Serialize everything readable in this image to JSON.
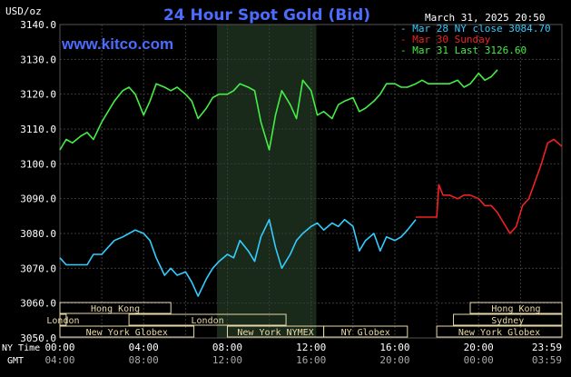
{
  "colors": {
    "background": "#000000",
    "grid": "#3a3a3a",
    "axis_text": "#ffffff",
    "title": "#4a6cff",
    "brand": "#4a6cff",
    "series_mar28": "#33ccff",
    "series_mar30": "#ee2222",
    "series_mar31": "#44ee44",
    "session_box": "#e8d8a8",
    "session_text": "#000000",
    "shade": "#1a2a1a"
  },
  "chart_data": {
    "type": "line",
    "title": "24 Hour Spot Gold (Bid)",
    "brand": "www.kitco.com",
    "timestamp": "March 31, 2025 20:50",
    "ylabel": "USD/oz",
    "ylim": [
      3050,
      3140
    ],
    "yticks": [
      "3140.0",
      "3130.0",
      "3120.0",
      "3110.0",
      "3100.0",
      "3090.0",
      "3080.0",
      "3070.0",
      "3060.0",
      "3050.0"
    ],
    "ytick_values": [
      3140,
      3130,
      3120,
      3110,
      3100,
      3090,
      3080,
      3070,
      3060,
      3050
    ],
    "x_row1_label": "NY Time",
    "x_row2_label": "GMT",
    "xticks_ny": [
      "00:00",
      "04:00",
      "08:00",
      "12:00",
      "16:00",
      "20:00",
      "23:59"
    ],
    "xticks_gmt": [
      "04:00",
      "08:00",
      "12:00",
      "16:00",
      "20:00",
      "00:00",
      "03:59"
    ],
    "xtick_hours": [
      0,
      4,
      8,
      12,
      16,
      20,
      23.98
    ],
    "xlim": [
      0,
      23.98
    ],
    "shaded_hours": [
      7.5,
      12.25
    ],
    "grid": true,
    "legend_position": "top-right",
    "legend": [
      {
        "label": "Mar 28 NY close 3084.70",
        "series": 0
      },
      {
        "label": "Mar 30 Sunday",
        "series": 1
      },
      {
        "label": "Mar 31 Last 3126.60",
        "series": 2
      }
    ],
    "series": [
      {
        "name": "Mar 28 NY close",
        "x": [
          0,
          0.3,
          0.6,
          1,
          1.3,
          1.6,
          2,
          2.3,
          2.6,
          3,
          3.3,
          3.6,
          4,
          4.3,
          4.6,
          5,
          5.3,
          5.6,
          6,
          6.3,
          6.6,
          7,
          7.3,
          7.6,
          8,
          8.3,
          8.6,
          9,
          9.3,
          9.6,
          10,
          10.3,
          10.6,
          11,
          11.3,
          11.6,
          12,
          12.3,
          12.6,
          13,
          13.3,
          13.6,
          14,
          14.3,
          14.6,
          15,
          15.3,
          15.6,
          16,
          16.3,
          16.6,
          17
        ],
        "values": [
          3073,
          3071,
          3071,
          3071,
          3071,
          3074,
          3074,
          3076,
          3078,
          3079,
          3080,
          3081,
          3080,
          3078,
          3073,
          3068,
          3070,
          3068,
          3069,
          3066,
          3062,
          3067,
          3070,
          3072,
          3074,
          3073,
          3078,
          3075,
          3072,
          3079,
          3084,
          3076,
          3070,
          3074,
          3078,
          3080,
          3082,
          3083,
          3081,
          3083,
          3082,
          3084,
          3082,
          3075,
          3078,
          3080,
          3075,
          3079,
          3078,
          3079,
          3081,
          3084
        ]
      },
      {
        "name": "Mar 30 Sunday",
        "x": [
          17,
          17.5,
          18,
          18.1,
          18.3,
          18.6,
          19,
          19.3,
          19.6,
          20,
          20.3,
          20.6,
          20.9,
          21.2,
          21.5,
          21.8,
          22.1,
          22.4,
          22.7,
          23,
          23.3,
          23.6,
          23.98
        ],
        "values": [
          3084.7,
          3084.7,
          3084.7,
          3094,
          3091,
          3091,
          3090,
          3091,
          3091,
          3090,
          3088,
          3088,
          3086,
          3083,
          3080,
          3082,
          3088,
          3090,
          3095,
          3100,
          3106,
          3107,
          3105
        ]
      },
      {
        "name": "Mar 31 Last",
        "x": [
          0,
          0.3,
          0.6,
          1,
          1.3,
          1.6,
          2,
          2.3,
          2.6,
          3,
          3.3,
          3.6,
          4,
          4.3,
          4.6,
          5,
          5.3,
          5.6,
          6,
          6.3,
          6.6,
          7,
          7.3,
          7.6,
          8,
          8.3,
          8.6,
          9,
          9.3,
          9.6,
          10,
          10.3,
          10.6,
          11,
          11.3,
          11.6,
          12,
          12.3,
          12.6,
          13,
          13.3,
          13.6,
          14,
          14.3,
          14.6,
          15,
          15.3,
          15.6,
          16,
          16.3,
          16.6,
          17,
          17.3,
          17.6,
          18,
          18.3,
          18.6,
          19,
          19.3,
          19.6,
          20,
          20.3,
          20.6,
          20.9
        ],
        "values": [
          3104,
          3107,
          3106,
          3108,
          3109,
          3107,
          3112,
          3115,
          3118,
          3121,
          3122,
          3120,
          3114,
          3118,
          3123,
          3122,
          3121,
          3122,
          3120,
          3118,
          3113,
          3116,
          3119,
          3120,
          3120,
          3121,
          3123,
          3122,
          3121,
          3112,
          3104,
          3114,
          3121,
          3117,
          3113,
          3124,
          3121,
          3114,
          3115,
          3113,
          3117,
          3118,
          3119,
          3115,
          3116,
          3118,
          3120,
          3123,
          3123,
          3122,
          3122,
          3123,
          3124,
          3123,
          3123,
          3123,
          3123,
          3124,
          3122,
          3123,
          3126,
          3124,
          3125,
          3127
        ]
      }
    ],
    "sessions": [
      {
        "label": "Hong Kong",
        "row": 0,
        "start": 0,
        "end": 5.3
      },
      {
        "label": "Hong Kong",
        "row": 0,
        "start": 19.6,
        "end": 23.98
      },
      {
        "label": "London",
        "row": 1,
        "start": 0,
        "end": 0.3
      },
      {
        "label": "London",
        "row": 1,
        "start": 3.3,
        "end": 10.8
      },
      {
        "label": "Sydney",
        "row": 1,
        "start": 18.8,
        "end": 23.98
      },
      {
        "label": "New York Globex",
        "row": 2,
        "start": 0,
        "end": 6.4
      },
      {
        "label": "New York NYMEX",
        "row": 2,
        "start": 8.0,
        "end": 12.6
      },
      {
        "label": "NY Globex",
        "row": 2,
        "start": 12.6,
        "end": 16.6
      },
      {
        "label": "New York Globex",
        "row": 2,
        "start": 18.0,
        "end": 23.98
      }
    ]
  }
}
